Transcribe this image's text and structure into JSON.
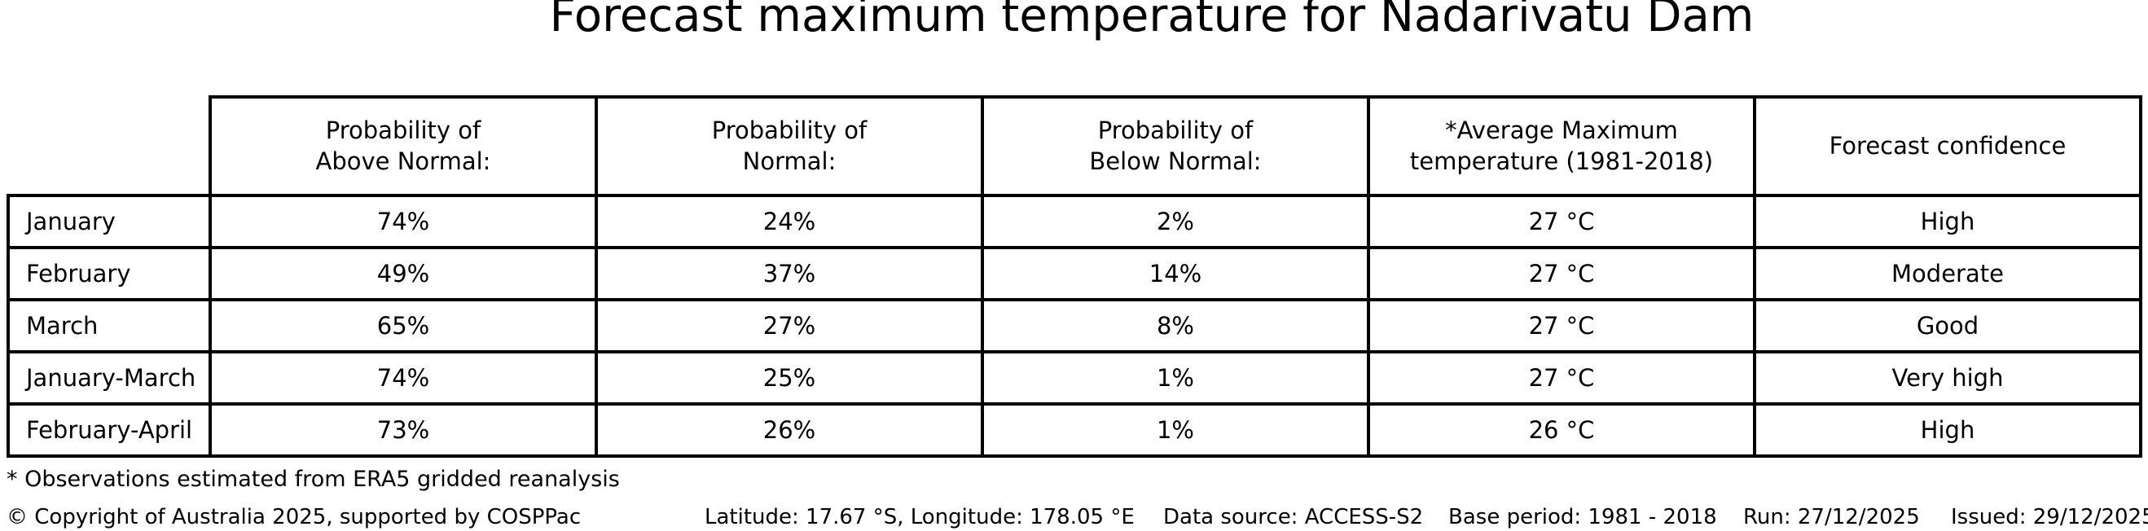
{
  "title": "Forecast maximum temperature for Nadarivatu Dam",
  "table": {
    "headers": [
      "Probability of\nAbove Normal:",
      "Probability of\nNormal:",
      "Probability of\nBelow Normal:",
      "*Average Maximum\ntemperature (1981-2018)",
      "Forecast confidence"
    ],
    "rows": [
      [
        "January",
        "74%",
        "24%",
        "2%",
        "27 °C",
        "High"
      ],
      [
        "February",
        "49%",
        "37%",
        "14%",
        "27 °C",
        "Moderate"
      ],
      [
        "March",
        "65%",
        "27%",
        "8%",
        "27 °C",
        "Good"
      ],
      [
        "January-March",
        "74%",
        "25%",
        "1%",
        "27 °C",
        "Very high"
      ],
      [
        "February-April",
        "73%",
        "26%",
        "1%",
        "26 °C",
        "High"
      ]
    ]
  },
  "footnote": "* Observations estimated from ERA5 gridded reanalysis",
  "footer": {
    "copyright": "© Copyright of Australia 2025, supported by COSPPac",
    "location": "Latitude: 17.67 °S, Longitude: 178.05 °E",
    "data_source": "Data source: ACCESS-S2",
    "base_period": "Base period: 1981 - 2018",
    "run": "Run: 27/12/2025",
    "issued": "Issued: 29/12/2025"
  },
  "colors": {
    "background": "#ffffff",
    "text": "#000000",
    "table_border": "#000000"
  },
  "chart_data": {
    "type": "table",
    "title": "Forecast maximum temperature for Nadarivatu Dam",
    "columns": [
      "",
      "Probability of Above Normal:",
      "Probability of Normal:",
      "Probability of Below Normal:",
      "*Average Maximum temperature (1981-2018)",
      "Forecast confidence"
    ],
    "rows": [
      [
        "January",
        "74%",
        "24%",
        "2%",
        "27 °C",
        "High"
      ],
      [
        "February",
        "49%",
        "37%",
        "14%",
        "27 °C",
        "Moderate"
      ],
      [
        "March",
        "65%",
        "27%",
        "8%",
        "27 °C",
        "Good"
      ],
      [
        "January-March",
        "74%",
        "25%",
        "1%",
        "27 °C",
        "Very high"
      ],
      [
        "February-April",
        "73%",
        "26%",
        "1%",
        "26 °C",
        "High"
      ]
    ],
    "probability_above_normal_pct": [
      74,
      49,
      65,
      74,
      73
    ],
    "probability_normal_pct": [
      24,
      37,
      27,
      25,
      26
    ],
    "probability_below_normal_pct": [
      2,
      14,
      8,
      1,
      1
    ],
    "average_max_temperature_c": [
      27,
      27,
      27,
      27,
      26
    ],
    "forecast_confidence": [
      "High",
      "Moderate",
      "Good",
      "Very high",
      "High"
    ],
    "footnote": "* Observations estimated from ERA5 gridded reanalysis"
  }
}
